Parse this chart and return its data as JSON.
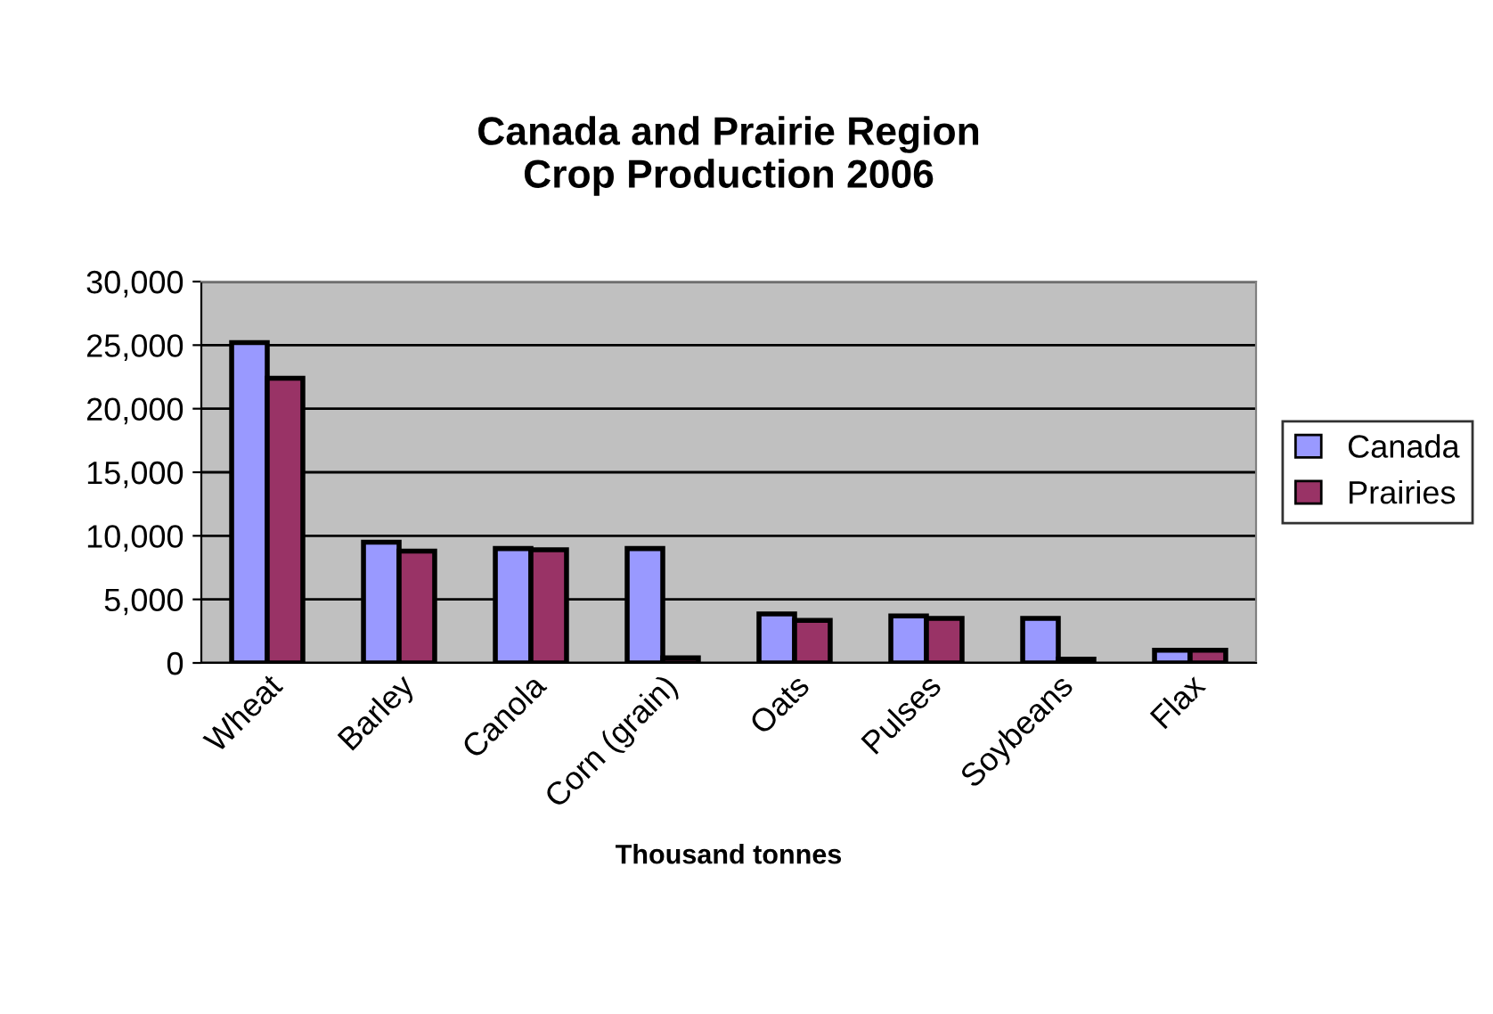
{
  "chart_data": {
    "type": "bar",
    "title": "Canada and Prairie Region\nCrop Production 2006",
    "xlabel": "Thousand tonnes",
    "categories": [
      "Wheat",
      "Barley",
      "Canola",
      "Corn (grain)",
      "Oats",
      "Pulses",
      "Soybeans",
      "Flax"
    ],
    "series": [
      {
        "name": "Canada",
        "color": "#9999ff",
        "values": [
          25200,
          9500,
          9000,
          9000,
          3850,
          3700,
          3500,
          1000
        ]
      },
      {
        "name": "Prairies",
        "color": "#993366",
        "values": [
          22400,
          8800,
          8900,
          400,
          3350,
          3500,
          300,
          1000
        ]
      }
    ],
    "ylim": [
      0,
      30000
    ],
    "yticks": [
      {
        "value": 0,
        "label": "0"
      },
      {
        "value": 5000,
        "label": "5,000"
      },
      {
        "value": 10000,
        "label": "10,000"
      },
      {
        "value": 15000,
        "label": "15,000"
      },
      {
        "value": 20000,
        "label": "20,000"
      },
      {
        "value": 25000,
        "label": "25,000"
      },
      {
        "value": 30000,
        "label": "30,000"
      }
    ],
    "grid": "y",
    "legend": "right"
  }
}
